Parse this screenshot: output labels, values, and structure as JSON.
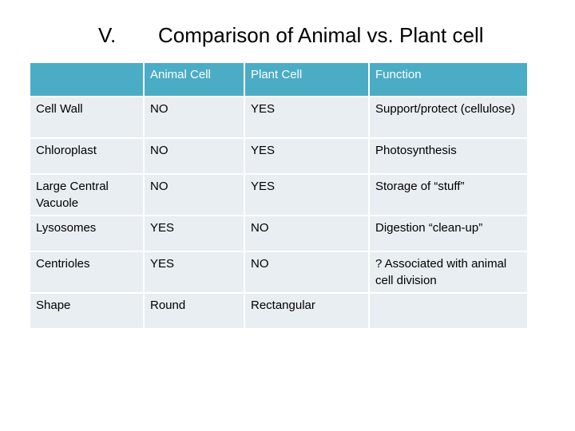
{
  "slide": {
    "numeral": "V.",
    "title": "Comparison of Animal vs. Plant cell"
  },
  "table": {
    "headers": [
      "",
      "Animal Cell",
      "Plant Cell",
      "Function"
    ],
    "rows": [
      [
        "Cell Wall",
        "NO",
        "YES",
        "Support/protect (cellulose)"
      ],
      [
        "Chloroplast",
        "NO",
        "YES",
        "Photosynthesis"
      ],
      [
        "Large Central Vacuole",
        "NO",
        "YES",
        "Storage of “stuff”"
      ],
      [
        "Lysosomes",
        "YES",
        "NO",
        "Digestion “clean-up”"
      ],
      [
        "Centrioles",
        "YES",
        "NO",
        "? Associated with animal cell division"
      ],
      [
        "Shape",
        "Round",
        "Rectangular",
        ""
      ]
    ]
  },
  "colors": {
    "header_bg": "#4bacc6",
    "header_text": "#ffffff",
    "row_bg": "#e8eef2"
  }
}
